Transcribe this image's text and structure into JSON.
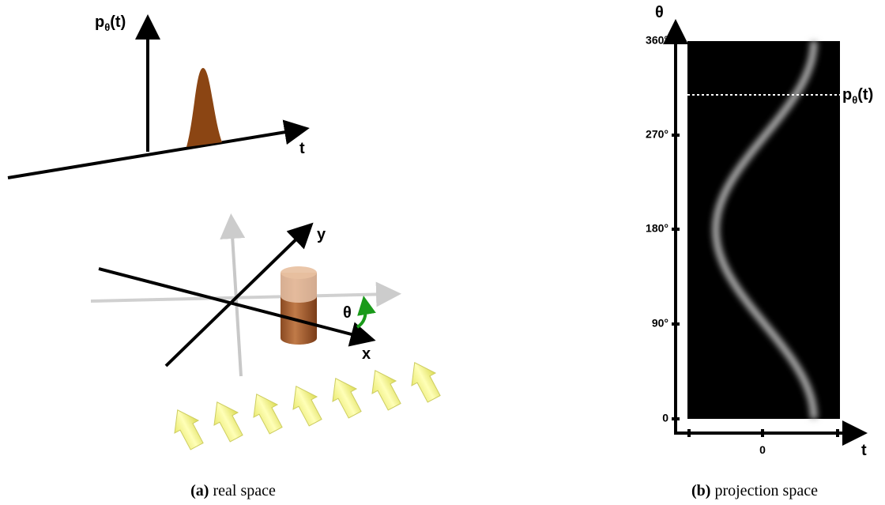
{
  "real_space": {
    "projection_label": {
      "base": "p",
      "sub": "θ",
      "rest": "(t)"
    },
    "t_label": "t",
    "y_label": "y",
    "x_label": "x",
    "angle_label": "θ"
  },
  "projection_space": {
    "y_label": "θ",
    "x_label": "t",
    "yticks": [
      "360°",
      "270°",
      "180°",
      "90°",
      "0"
    ],
    "xticks": [
      "0"
    ],
    "line_label": {
      "base": "p",
      "sub": "θ",
      "rest": "(t)"
    }
  },
  "captions": [
    {
      "tag": "(a)",
      "text": "real space"
    },
    {
      "tag": "(b)",
      "text": "projection space"
    }
  ]
}
